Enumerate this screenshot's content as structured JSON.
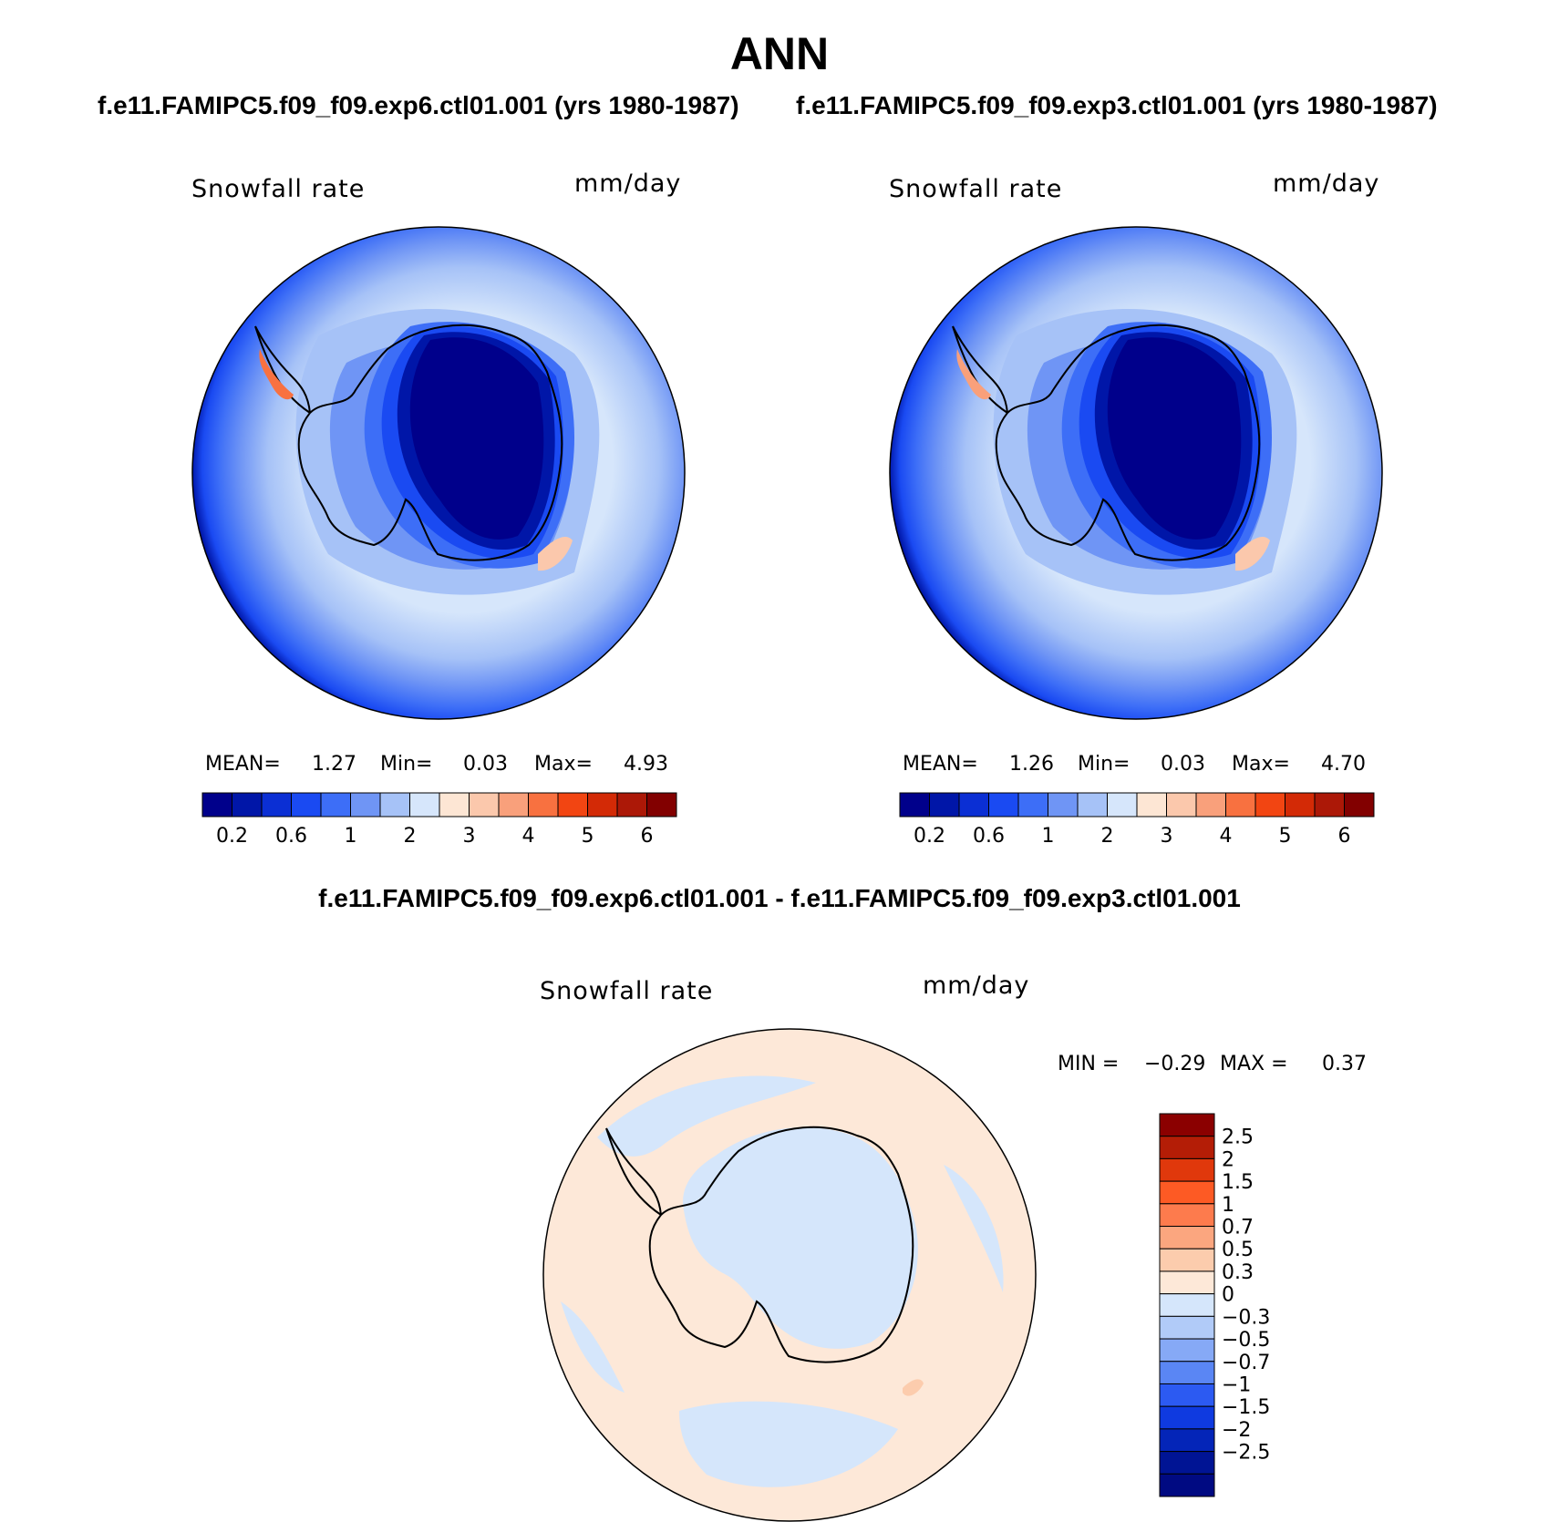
{
  "title": "ANN",
  "panels": [
    {
      "case": "f.e11.FAMIPC5.f09_f09.exp6.ctl01.001 (yrs 1980-1987)",
      "variable": "Snowfall rate",
      "units": "mm/day",
      "mean_label": "MEAN=",
      "mean": "1.27",
      "min_label": "Min=",
      "min": "0.03",
      "max_label": "Max=",
      "max": "4.93"
    },
    {
      "case": "f.e11.FAMIPC5.f09_f09.exp3.ctl01.001 (yrs 1980-1987)",
      "variable": "Snowfall rate",
      "units": "mm/day",
      "mean_label": "MEAN=",
      "mean": "1.26",
      "min_label": "Min=",
      "min": "0.03",
      "max_label": "Max=",
      "max": "4.70"
    }
  ],
  "colorbar": {
    "colors": [
      "#00008b",
      "#0016a8",
      "#0b2fd4",
      "#1a4af2",
      "#3d6ef7",
      "#6f95f5",
      "#a6c2f7",
      "#d6e6fb",
      "#fde6d4",
      "#fbc8ac",
      "#f9a07b",
      "#f87140",
      "#f24512",
      "#d32a06",
      "#ac1807",
      "#820000"
    ],
    "tick_labels": [
      "0.2",
      "0.6",
      "1",
      "2",
      "3",
      "4",
      "5",
      "6"
    ]
  },
  "difference": {
    "title": "f.e11.FAMIPC5.f09_f09.exp6.ctl01.001 - f.e11.FAMIPC5.f09_f09.exp3.ctl01.001",
    "variable": "Snowfall rate",
    "units": "mm/day",
    "min_label": "MIN =",
    "min": "−0.29",
    "max_label": "MAX =",
    "max": "0.37",
    "colors_top_to_bottom": [
      "#8b0000",
      "#b41d06",
      "#e0380c",
      "#fd5a24",
      "#fd7b4d",
      "#fba67f",
      "#fcccad",
      "#fde8d8",
      "#d5e6fb",
      "#b1cbf8",
      "#86a9f6",
      "#5a86f4",
      "#2c5af2",
      "#0f3ae0",
      "#0425b8",
      "#001494",
      "#000a82"
    ],
    "tick_labels": [
      "2.5",
      "2",
      "1.5",
      "1",
      "0.7",
      "0.5",
      "0.3",
      "0",
      "−0.3",
      "−0.5",
      "−0.7",
      "−1",
      "−1.5",
      "−2",
      "−2.5"
    ]
  },
  "chart_data": [
    {
      "type": "heatmap",
      "title": "Snowfall rate",
      "subtitle": "f.e11.FAMIPC5.f09_f09.exp6.ctl01.001 (yrs 1980-1987)",
      "units": "mm/day",
      "projection": "south polar stereographic",
      "stats": {
        "mean": 1.27,
        "min": 0.03,
        "max": 4.93
      },
      "levels": [
        0.2,
        0.4,
        0.6,
        0.8,
        1,
        1.5,
        2,
        2.5,
        3,
        3.5,
        4,
        4.5,
        5,
        5.5,
        6
      ]
    },
    {
      "type": "heatmap",
      "title": "Snowfall rate",
      "subtitle": "f.e11.FAMIPC5.f09_f09.exp3.ctl01.001 (yrs 1980-1987)",
      "units": "mm/day",
      "projection": "south polar stereographic",
      "stats": {
        "mean": 1.26,
        "min": 0.03,
        "max": 4.7
      },
      "levels": [
        0.2,
        0.4,
        0.6,
        0.8,
        1,
        1.5,
        2,
        2.5,
        3,
        3.5,
        4,
        4.5,
        5,
        5.5,
        6
      ]
    },
    {
      "type": "heatmap",
      "title": "Snowfall rate",
      "subtitle": "f.e11.FAMIPC5.f09_f09.exp6.ctl01.001 - f.e11.FAMIPC5.f09_f09.exp3.ctl01.001",
      "units": "mm/day",
      "projection": "south polar stereographic",
      "stats": {
        "min": -0.29,
        "max": 0.37
      },
      "levels": [
        -2.5,
        -2,
        -1.5,
        -1,
        -0.7,
        -0.5,
        -0.3,
        0,
        0.3,
        0.5,
        0.7,
        1,
        1.5,
        2,
        2.5
      ]
    }
  ]
}
